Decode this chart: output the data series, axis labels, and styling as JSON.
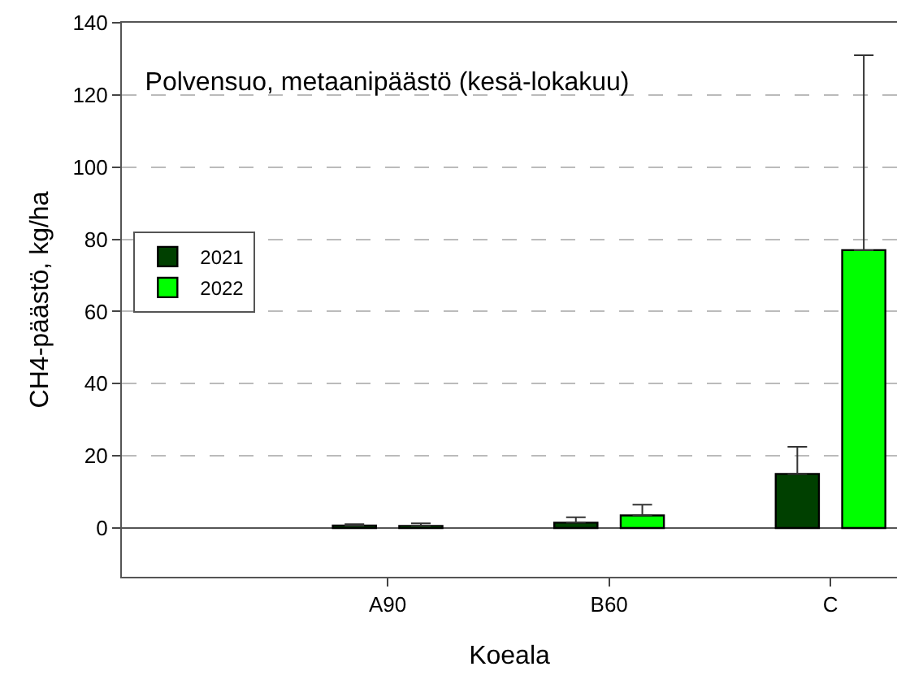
{
  "chart_data": {
    "type": "bar",
    "title": "Polvensuo, metaanipäästö (kesä-lokakuu)",
    "xlabel": "Koeala",
    "ylabel": "CH4-päästö, kg/ha",
    "categories": [
      "A90",
      "B60",
      "C"
    ],
    "series": [
      {
        "name": "2021",
        "color": "#004000",
        "values": [
          0.7,
          1.5,
          15
        ],
        "errors": [
          [
            0.7,
            1.1
          ],
          [
            1.5,
            3
          ],
          [
            15,
            22.5
          ]
        ]
      },
      {
        "name": "2022",
        "color": "#00ff00",
        "values": [
          0.6,
          3.5,
          77
        ],
        "errors": [
          [
            0.6,
            1.3
          ],
          [
            3.5,
            6.5
          ],
          [
            77,
            131
          ]
        ]
      }
    ],
    "ylim": [
      -13.5,
      140
    ],
    "yticks": [
      0,
      20,
      40,
      60,
      80,
      100,
      120,
      140
    ],
    "grid": "y",
    "legend": "left"
  }
}
